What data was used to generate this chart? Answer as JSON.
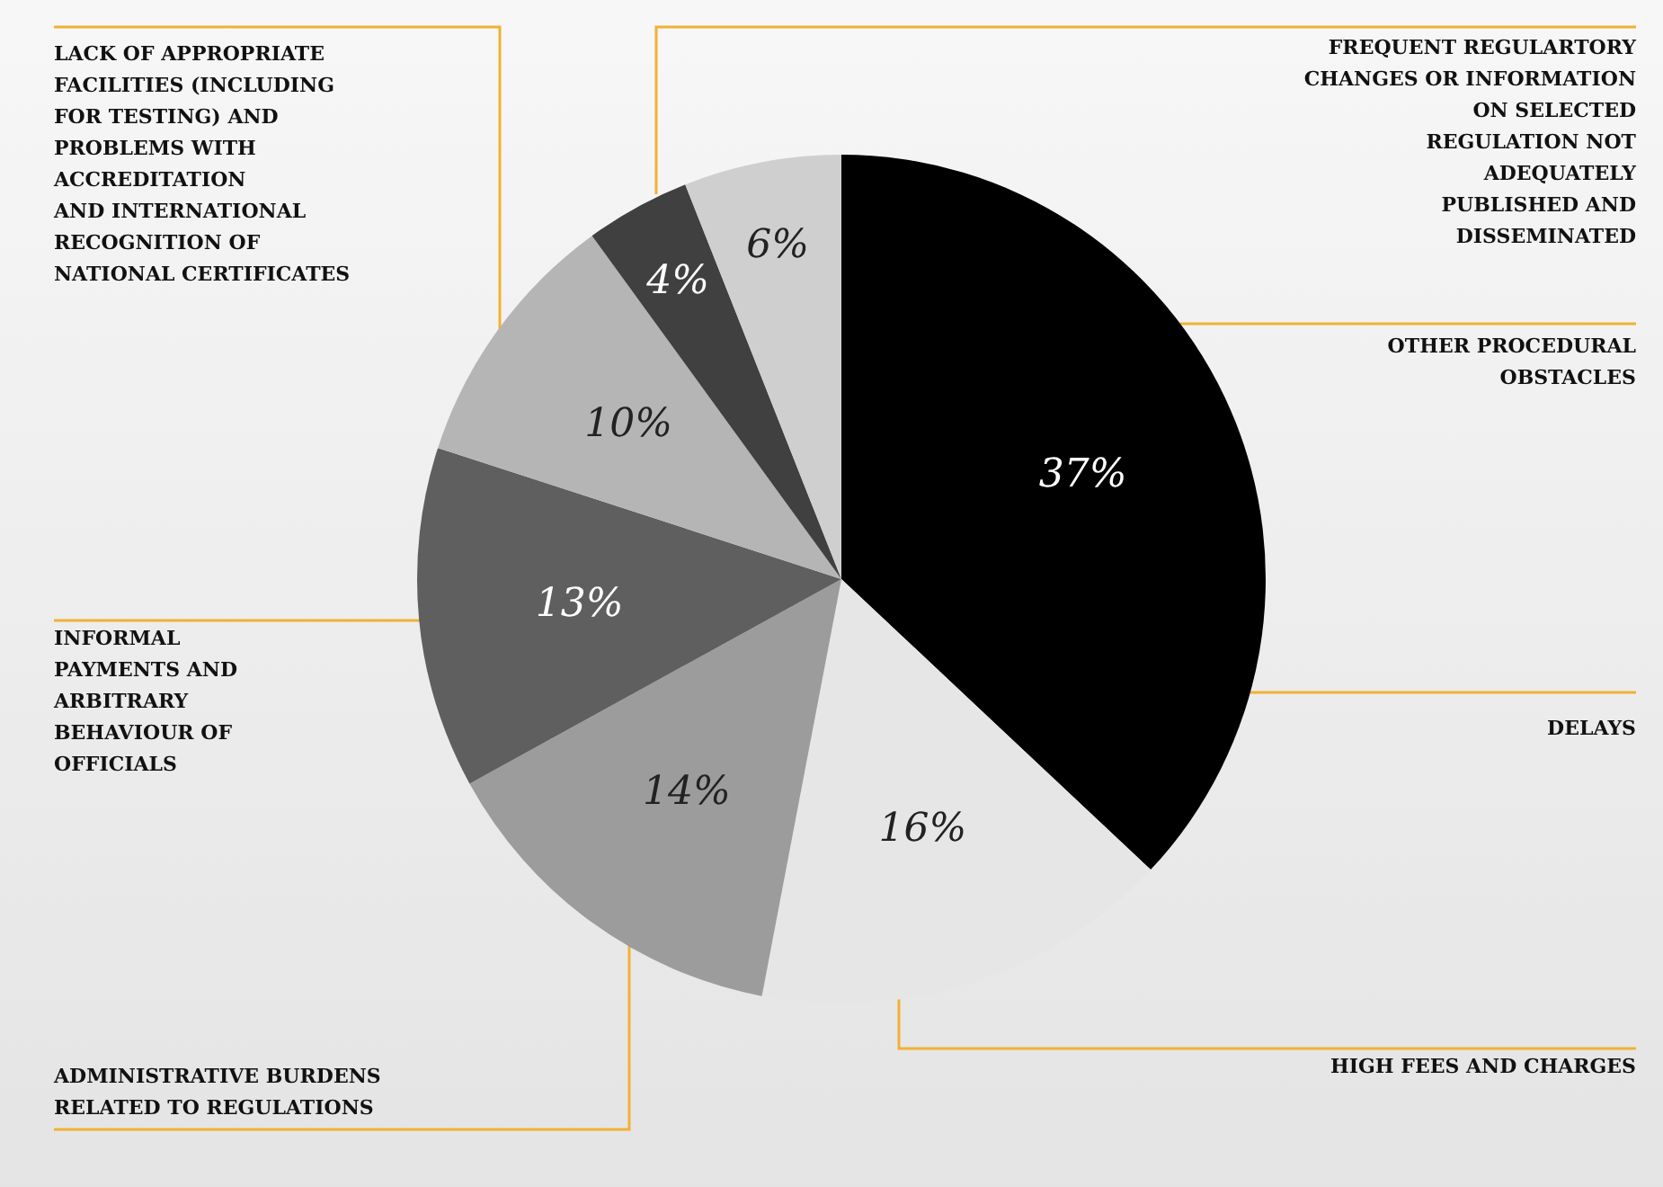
{
  "chart_data": {
    "type": "pie",
    "categories": [
      "DELAYS",
      "HIGH FEES AND CHARGES",
      "ADMINISTRATIVE BURDENS\nRELATED TO REGULATIONS",
      "INFORMAL\nPAYMENTS AND\nARBITRARY\nBEHAVIOUR OF\nOFFICIALS",
      "LACK OF APPROPRIATE\nFACILITIES (INCLUDING\nFOR TESTING) AND\nPROBLEMS WITH\nACCREDITATION\nAND INTERNATIONAL\nRECOGNITION OF\nNATIONAL CERTIFICATES",
      "FREQUENT REGULARTORY\nCHANGES OR INFORMATION\nON SELECTED\nREGULATION NOT\nADEQUATELY\nPUBLISHED AND\nDISSEMINATED",
      "OTHER PROCEDURAL\nOBSTACLES"
    ],
    "values": [
      37,
      16,
      14,
      13,
      10,
      4,
      6
    ],
    "value_labels": [
      "37%",
      "16%",
      "14%",
      "13%",
      "10%",
      "4%",
      "6%"
    ],
    "colors": [
      "#000000",
      "#e6e6e6",
      "#9c9c9c",
      "#5f5f5f",
      "#b5b5b5",
      "#404040",
      "#cfcfcf"
    ],
    "legend": false
  }
}
